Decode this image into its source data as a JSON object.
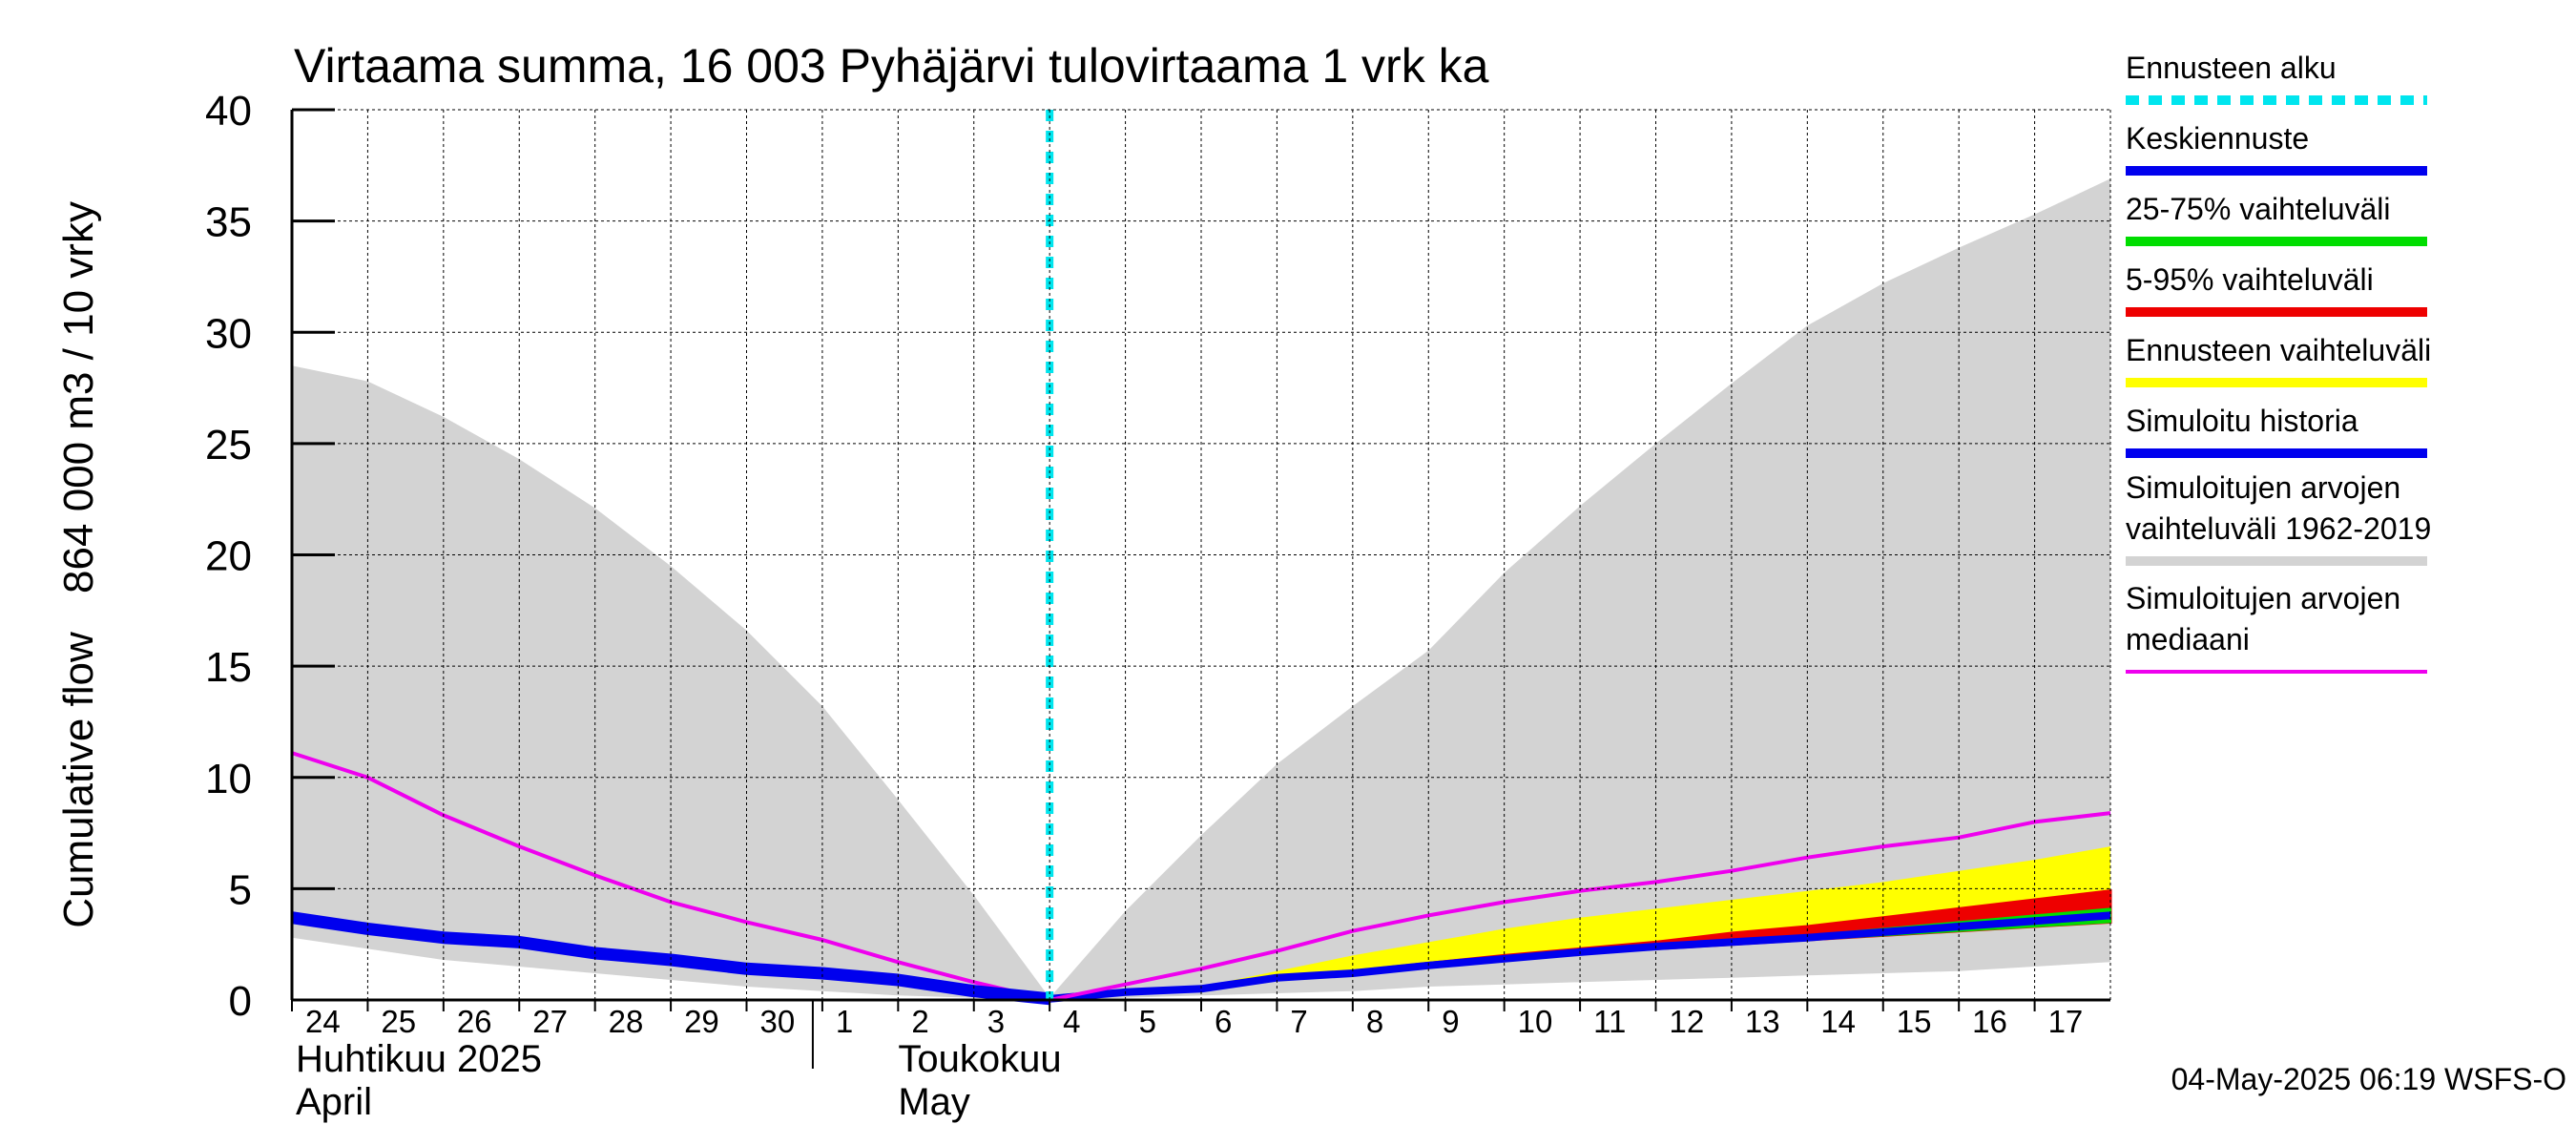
{
  "chart_data": {
    "type": "area",
    "title": "Virtaama summa, 16 003 Pyhäjärvi tulovirtaama 1 vrk ka",
    "ylabel_lines": [
      "Cumulative flow",
      "864 000 m3 / 10 vrky"
    ],
    "ylim": [
      0,
      40
    ],
    "yticks": [
      0,
      5,
      10,
      15,
      20,
      25,
      30,
      35,
      40
    ],
    "x_day_range": [
      0,
      24
    ],
    "x_ticks": [
      {
        "day": 0,
        "label": "24"
      },
      {
        "day": 1,
        "label": "25"
      },
      {
        "day": 2,
        "label": "26"
      },
      {
        "day": 3,
        "label": "27"
      },
      {
        "day": 4,
        "label": "28"
      },
      {
        "day": 5,
        "label": "29"
      },
      {
        "day": 6,
        "label": "30"
      },
      {
        "day": 7,
        "label": "1"
      },
      {
        "day": 8,
        "label": "2"
      },
      {
        "day": 9,
        "label": "3"
      },
      {
        "day": 10,
        "label": "4"
      },
      {
        "day": 11,
        "label": "5"
      },
      {
        "day": 12,
        "label": "6"
      },
      {
        "day": 13,
        "label": "7"
      },
      {
        "day": 14,
        "label": "8"
      },
      {
        "day": 15,
        "label": "9"
      },
      {
        "day": 16,
        "label": "10"
      },
      {
        "day": 17,
        "label": "11"
      },
      {
        "day": 18,
        "label": "12"
      },
      {
        "day": 19,
        "label": "13"
      },
      {
        "day": 20,
        "label": "14"
      },
      {
        "day": 21,
        "label": "15"
      },
      {
        "day": 22,
        "label": "16"
      },
      {
        "day": 23,
        "label": "17"
      }
    ],
    "month_labels": [
      {
        "day": 0,
        "lines": [
          "Huhtikuu  2025",
          "April"
        ]
      },
      {
        "day": 8,
        "lines": [
          "Toukokuu",
          "May"
        ]
      }
    ],
    "month_divider_day": 7,
    "forecast_start_day": 10,
    "series": {
      "historical_range_upper": {
        "x": [
          0,
          1,
          2,
          3,
          4,
          5,
          6,
          7,
          8,
          9,
          10,
          11,
          12,
          13,
          14,
          15,
          16,
          17,
          18,
          19,
          20,
          21,
          22,
          23,
          24
        ],
        "y": [
          28.5,
          27.8,
          26.2,
          24.3,
          22.1,
          19.5,
          16.6,
          13.2,
          9.0,
          4.7,
          0.1,
          4.0,
          7.4,
          10.6,
          13.2,
          15.7,
          19.2,
          22.2,
          25.0,
          27.7,
          30.3,
          32.2,
          33.8,
          35.3,
          36.9
        ]
      },
      "historical_range_lower": {
        "x": [
          0,
          1,
          2,
          3,
          4,
          5,
          6,
          7,
          8,
          9,
          10,
          11,
          12,
          13,
          14,
          15,
          16,
          17,
          18,
          19,
          20,
          21,
          22,
          23,
          24
        ],
        "y": [
          2.8,
          2.3,
          1.8,
          1.5,
          1.2,
          0.9,
          0.6,
          0.4,
          0.2,
          0.1,
          0.0,
          0.1,
          0.2,
          0.3,
          0.4,
          0.6,
          0.7,
          0.8,
          0.9,
          1.0,
          1.1,
          1.2,
          1.3,
          1.5,
          1.7
        ]
      },
      "historical_median": {
        "x": [
          0,
          1,
          2,
          3,
          4,
          5,
          6,
          7,
          8,
          9,
          10,
          11,
          12,
          13,
          14,
          15,
          16,
          17,
          18,
          19,
          20,
          21,
          22,
          23,
          24
        ],
        "y": [
          11.1,
          10.0,
          8.3,
          6.9,
          5.6,
          4.4,
          3.5,
          2.7,
          1.7,
          0.8,
          0.0,
          0.7,
          1.4,
          2.2,
          3.1,
          3.8,
          4.4,
          4.9,
          5.3,
          5.8,
          6.4,
          6.9,
          7.3,
          8.0,
          8.4
        ]
      },
      "simulated_history": {
        "x": [
          0,
          1,
          2,
          3,
          4,
          5,
          6,
          7,
          8,
          9,
          10
        ],
        "y": [
          3.7,
          3.2,
          2.8,
          2.6,
          2.1,
          1.8,
          1.4,
          1.2,
          0.9,
          0.4,
          0.05
        ]
      },
      "forecast_range_upper": {
        "x": [
          10,
          11,
          12,
          13,
          14,
          15,
          16,
          17,
          18,
          19,
          20,
          21,
          22,
          23,
          24
        ],
        "y": [
          0.05,
          0.4,
          0.6,
          1.3,
          2.0,
          2.6,
          3.2,
          3.7,
          4.1,
          4.5,
          4.9,
          5.3,
          5.8,
          6.3,
          6.9
        ]
      },
      "forecast_range_lower": {
        "x": [
          10,
          11,
          12,
          13,
          14,
          15,
          16,
          17,
          18,
          19,
          20,
          21,
          22,
          23,
          24
        ],
        "y": [
          0.05,
          0.3,
          0.5,
          1.0,
          1.2,
          1.5,
          1.8,
          2.1,
          2.3,
          2.5,
          2.7,
          2.9,
          3.1,
          3.3,
          3.5
        ]
      },
      "p5_95_upper": {
        "x": [
          10,
          11,
          12,
          13,
          14,
          15,
          16,
          17,
          18,
          19,
          20,
          21,
          22,
          23,
          24
        ],
        "y": [
          0.05,
          0.35,
          0.55,
          1.05,
          1.3,
          1.65,
          2.0,
          2.3,
          2.6,
          3.0,
          3.3,
          3.7,
          4.1,
          4.5,
          4.9
        ]
      },
      "p5_95_lower": {
        "x": [
          10,
          11,
          12,
          13,
          14,
          15,
          16,
          17,
          18,
          19,
          20,
          21,
          22,
          23,
          24
        ],
        "y": [
          0.05,
          0.3,
          0.5,
          1.0,
          1.2,
          1.5,
          1.8,
          2.1,
          2.3,
          2.5,
          2.7,
          2.9,
          3.1,
          3.3,
          3.5
        ]
      },
      "p25_75_upper": {
        "x": [
          10,
          11,
          12,
          13,
          14,
          15,
          16,
          17,
          18,
          19,
          20,
          21,
          22,
          23,
          24
        ],
        "y": [
          0.05,
          0.35,
          0.5,
          1.0,
          1.25,
          1.6,
          1.9,
          2.2,
          2.45,
          2.7,
          2.9,
          3.2,
          3.5,
          3.8,
          4.1
        ]
      },
      "p25_75_lower": {
        "x": [
          10,
          11,
          12,
          13,
          14,
          15,
          16,
          17,
          18,
          19,
          20,
          21,
          22,
          23,
          24
        ],
        "y": [
          0.05,
          0.3,
          0.45,
          0.95,
          1.2,
          1.5,
          1.8,
          2.1,
          2.3,
          2.5,
          2.7,
          2.9,
          3.1,
          3.3,
          3.5
        ]
      },
      "median_forecast": {
        "x": [
          10,
          11,
          12,
          13,
          14,
          15,
          16,
          17,
          18,
          19,
          20,
          21,
          22,
          23,
          24
        ],
        "y": [
          0.05,
          0.35,
          0.5,
          1.0,
          1.2,
          1.55,
          1.85,
          2.15,
          2.4,
          2.6,
          2.8,
          3.05,
          3.3,
          3.55,
          3.8
        ]
      }
    },
    "legend": [
      {
        "key": "forecast_start",
        "lines": [
          "Ennusteen alku"
        ],
        "color": "#00e5ee",
        "style": "dashed"
      },
      {
        "key": "median_forecast",
        "lines": [
          "Keskiennuste"
        ],
        "color": "#0000ee",
        "style": "solid"
      },
      {
        "key": "p25_75",
        "lines": [
          "25-75% vaihteluväli"
        ],
        "color": "#00dd00",
        "style": "solid"
      },
      {
        "key": "p5_95",
        "lines": [
          "5-95% vaihteluväli"
        ],
        "color": "#ee0000",
        "style": "solid"
      },
      {
        "key": "forecast_range",
        "lines": [
          "Ennusteen vaihteluväli"
        ],
        "color": "#ffff00",
        "style": "solid"
      },
      {
        "key": "simulated_history",
        "lines": [
          "Simuloitu historia"
        ],
        "color": "#0000ee",
        "style": "solid"
      },
      {
        "key": "historical_range",
        "lines": [
          "Simuloitujen arvojen",
          "vaihteluväli 1962-2019"
        ],
        "color": "#d3d3d3",
        "style": "solid"
      },
      {
        "key": "historical_median",
        "lines": [
          "Simuloitujen arvojen",
          "mediaani"
        ],
        "color": "#ee00ee",
        "style": "solid"
      }
    ],
    "colors": {
      "historical_range": "#d3d3d3",
      "historical_median": "#ee00ee",
      "simulated_history": "#0000ee",
      "forecast_range": "#ffff00",
      "p5_95": "#ee0000",
      "p25_75": "#00dd00",
      "median_forecast": "#0000ee",
      "forecast_start": "#00e5ee",
      "grid": "#000000"
    },
    "timestamp": "04-May-2025 06:19 WSFS-O"
  }
}
